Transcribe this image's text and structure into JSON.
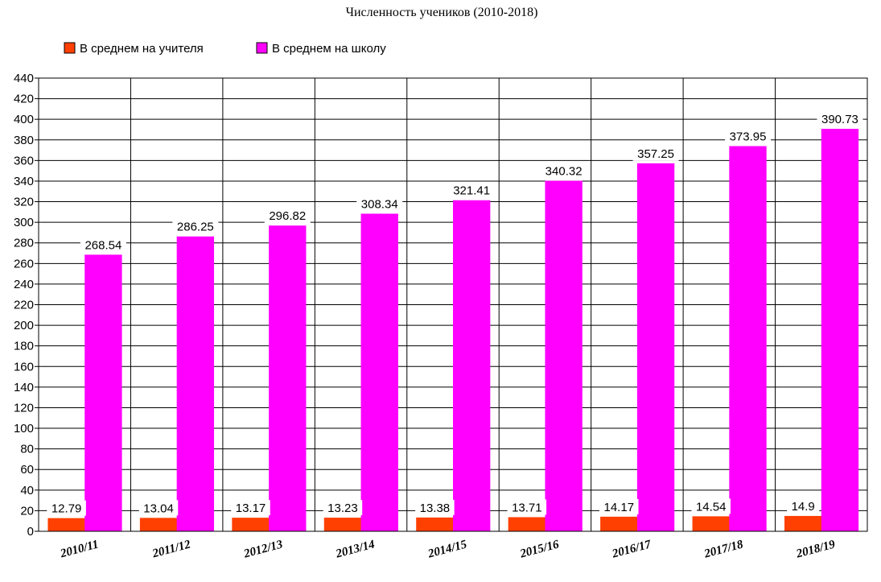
{
  "chart_data": {
    "type": "bar",
    "title": "Численность учеников (2010-2018)",
    "categories": [
      "2010/11",
      "2011/12",
      "2012/13",
      "2013/14",
      "2014/15",
      "2015/16",
      "2016/17",
      "2017/18",
      "2018/19"
    ],
    "series": [
      {
        "name": "В среднем на учителя",
        "color": "#ff4000",
        "values": [
          12.79,
          13.04,
          13.17,
          13.23,
          13.38,
          13.71,
          14.17,
          14.54,
          14.9
        ],
        "labels": [
          "12.79",
          "13.04",
          "13.17",
          "13.23",
          "13.38",
          "13.71",
          "14.17",
          "14.54",
          "14.9"
        ]
      },
      {
        "name": "В среднем на школу",
        "color": "#ff00ff",
        "values": [
          268.54,
          286.25,
          296.82,
          308.34,
          321.41,
          340.32,
          357.25,
          373.95,
          390.73
        ],
        "labels": [
          "268.54",
          "286.25",
          "296.82",
          "308.34",
          "321.41",
          "340.32",
          "357.25",
          "373.95",
          "390.73"
        ]
      }
    ],
    "ylim": [
      0,
      440
    ],
    "yticks": [
      "0",
      "20",
      "40",
      "60",
      "80",
      "100",
      "120",
      "140",
      "160",
      "180",
      "200",
      "220",
      "240",
      "260",
      "280",
      "300",
      "320",
      "340",
      "360",
      "380",
      "400",
      "420",
      "440"
    ],
    "grid": true,
    "legend": "top-left"
  }
}
